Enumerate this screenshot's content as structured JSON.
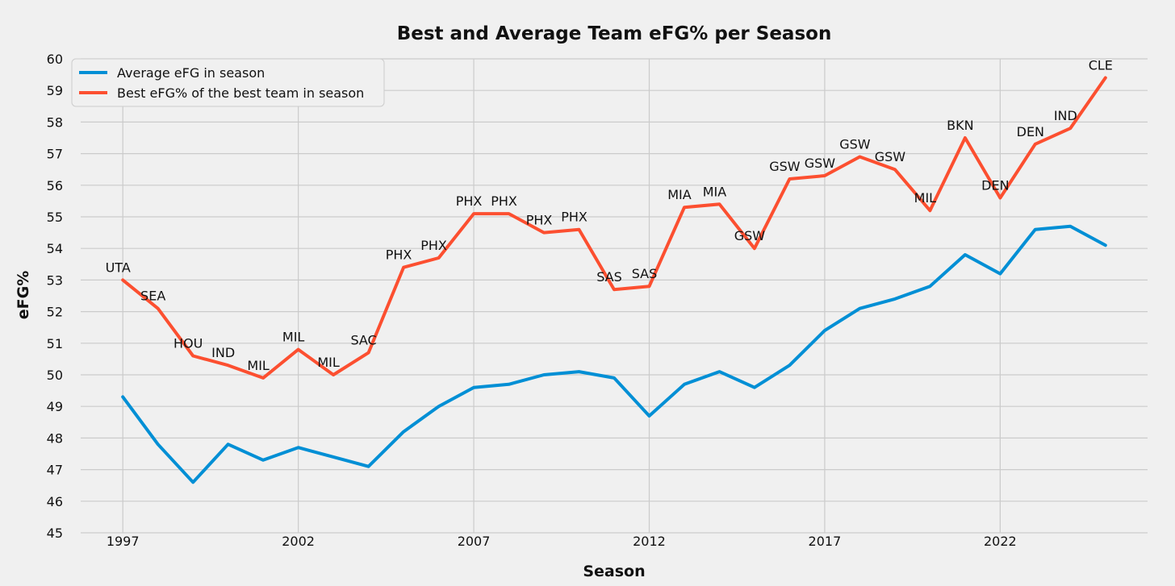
{
  "chart_data": {
    "type": "line",
    "title": "Best and Average Team eFG% per Season",
    "xlabel": "Season",
    "ylabel": "eFG%",
    "xlim": [
      1995.8,
      2026.2
    ],
    "ylim": [
      45,
      60
    ],
    "xticks": [
      1997,
      2002,
      2007,
      2012,
      2017,
      2022
    ],
    "yticks": [
      45,
      46,
      47,
      48,
      49,
      50,
      51,
      52,
      53,
      54,
      55,
      56,
      57,
      58,
      59,
      60
    ],
    "grid": true,
    "legend_position": "top-left",
    "x": [
      1997,
      1998,
      1999,
      2000,
      2001,
      2002,
      2003,
      2004,
      2005,
      2006,
      2007,
      2008,
      2009,
      2010,
      2011,
      2012,
      2013,
      2014,
      2015,
      2016,
      2017,
      2018,
      2019,
      2020,
      2021,
      2022,
      2023,
      2024,
      2025
    ],
    "series": [
      {
        "name": "Average eFG in season",
        "color": "#008fd5",
        "values": [
          49.3,
          47.8,
          46.6,
          47.8,
          47.3,
          47.7,
          47.4,
          47.1,
          48.2,
          49.0,
          49.6,
          49.7,
          50.0,
          50.1,
          49.9,
          48.7,
          49.7,
          50.1,
          49.6,
          50.3,
          51.4,
          52.1,
          52.4,
          52.8,
          53.8,
          53.2,
          54.6,
          54.7,
          54.1
        ]
      },
      {
        "name": "Best eFG% of the best team in season",
        "color": "#fc4f30",
        "values": [
          53.0,
          52.1,
          50.6,
          50.3,
          49.9,
          50.8,
          50.0,
          50.7,
          53.4,
          53.7,
          55.1,
          55.1,
          54.5,
          54.6,
          52.7,
          52.8,
          55.3,
          55.4,
          54.0,
          56.2,
          56.3,
          56.9,
          56.5,
          55.2,
          57.5,
          55.6,
          57.3,
          57.8,
          59.4
        ]
      }
    ],
    "annotations": [
      "UTA",
      "SEA",
      "HOU",
      "IND",
      "MIL",
      "MIL",
      "MIL",
      "SAC",
      "PHX",
      "PHX",
      "PHX",
      "PHX",
      "PHX",
      "PHX",
      "SAS",
      "SAS",
      "MIA",
      "MIA",
      "GSW",
      "GSW",
      "GSW",
      "GSW",
      "GSW",
      "MIL",
      "BKN",
      "DEN",
      "DEN",
      "IND",
      "CLE"
    ]
  }
}
